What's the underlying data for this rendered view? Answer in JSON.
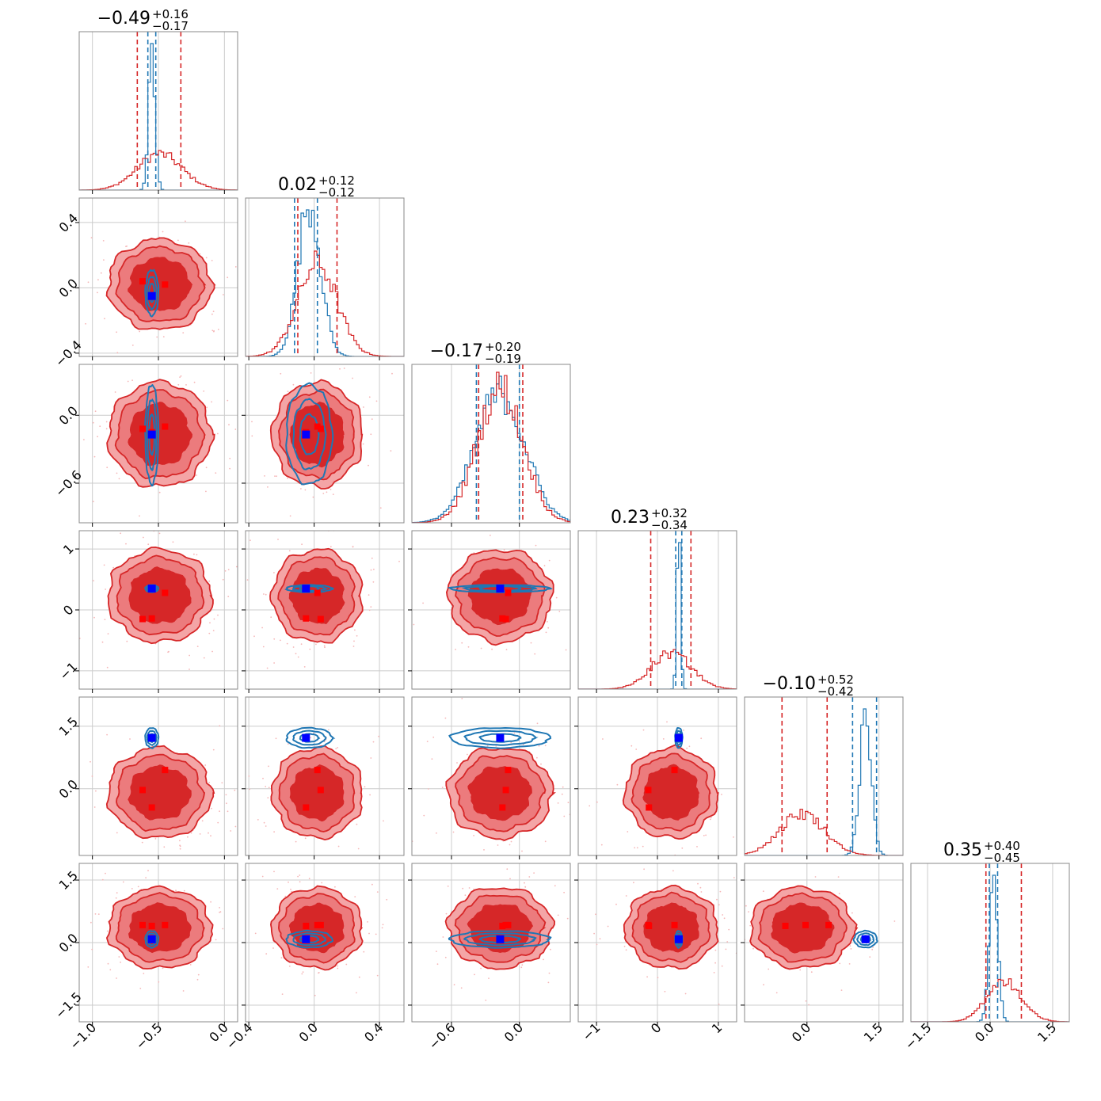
{
  "chart_data": {
    "type": "corner",
    "n_params": 6,
    "colors": {
      "red": "#d62728",
      "red_fill_light": "#f08a8c",
      "red_fill_dark": "#d62728",
      "blue": "#1f77b4",
      "marker_blue": "#0000ff",
      "marker_red": "#ff0000",
      "grid": "#cccccc"
    },
    "titles": [
      {
        "median": "−0.49",
        "plus": "+0.16",
        "minus": "−0.17"
      },
      {
        "median": "0.02",
        "plus": "+0.12",
        "minus": "−0.12"
      },
      {
        "median": "−0.17",
        "plus": "+0.20",
        "minus": "−0.19"
      },
      {
        "median": "0.23",
        "plus": "+0.32",
        "minus": "−0.34"
      },
      {
        "median": "−0.10",
        "plus": "+0.52",
        "minus": "−0.42"
      },
      {
        "median": "0.35",
        "plus": "+0.40",
        "minus": "−0.45"
      }
    ],
    "axes": [
      {
        "range": [
          -1.1,
          0.1
        ],
        "ticks": [
          -1.0,
          -0.5,
          0.0
        ],
        "labels": [
          "−1.0",
          "−0.5",
          "0.0"
        ]
      },
      {
        "range": [
          -0.42,
          0.55
        ],
        "ticks": [
          -0.4,
          0.0,
          0.4
        ],
        "labels": [
          "−0.4",
          "0.0",
          "0.4"
        ]
      },
      {
        "range": [
          -0.95,
          0.45
        ],
        "ticks": [
          -0.6,
          0.0
        ],
        "labels": [
          "−0.6",
          "0.0"
        ]
      },
      {
        "range": [
          -1.3,
          1.3
        ],
        "ticks": [
          -1,
          0,
          1
        ],
        "labels": [
          "−1",
          "0",
          "1"
        ]
      },
      {
        "range": [
          -1.3,
          2.0
        ],
        "ticks": [
          0.0,
          1.5
        ],
        "labels": [
          "0.0",
          "1.5"
        ]
      },
      {
        "range": [
          -1.9,
          1.9
        ],
        "ticks": [
          -1.5,
          0.0,
          1.5
        ],
        "labels": [
          "−1.5",
          "0.0",
          "1.5"
        ]
      }
    ],
    "ytick_overrides": {
      "4": {
        "ticks": [
          1.5,
          0.0
        ],
        "labels": [
          "1.5",
          "0.0"
        ],
        "range": [
          -1.6,
          2.2
        ]
      }
    },
    "posterior_red": {
      "mean": [
        -0.49,
        0.02,
        -0.17,
        0.23,
        -0.1,
        0.35
      ],
      "std": [
        0.17,
        0.12,
        0.2,
        0.33,
        0.47,
        0.42
      ],
      "quantiles": [
        [
          -0.66,
          -0.33
        ],
        [
          -0.1,
          0.14
        ],
        [
          -0.36,
          0.03
        ],
        [
          -0.11,
          0.55
        ],
        [
          -0.52,
          0.42
        ],
        [
          -0.1,
          0.75
        ]
      ]
    },
    "posterior_blue": {
      "mean": [
        -0.55,
        -0.03,
        -0.17,
        0.35,
        1.22,
        0.08
      ],
      "std": [
        0.025,
        0.07,
        0.22,
        0.03,
        0.12,
        0.1
      ],
      "quantiles": [
        [
          -0.58,
          -0.52
        ],
        [
          -0.12,
          0.02
        ],
        [
          -0.38,
          0.0
        ],
        [
          0.3,
          0.4
        ],
        [
          0.95,
          1.45
        ],
        [
          -0.02,
          0.18
        ]
      ]
    },
    "truth_blue": [
      -0.55,
      -0.05,
      -0.17,
      0.35,
      1.22,
      0.08
    ],
    "truth_red_points": [
      [
        -0.62,
        0.04,
        -0.12,
        -0.15,
        -0.03,
        0.42
      ],
      [
        -0.55,
        -0.05,
        -0.15,
        -0.14,
        -0.45,
        0.4
      ],
      [
        -0.45,
        0.02,
        -0.1,
        0.28,
        0.45,
        0.42
      ]
    ]
  }
}
